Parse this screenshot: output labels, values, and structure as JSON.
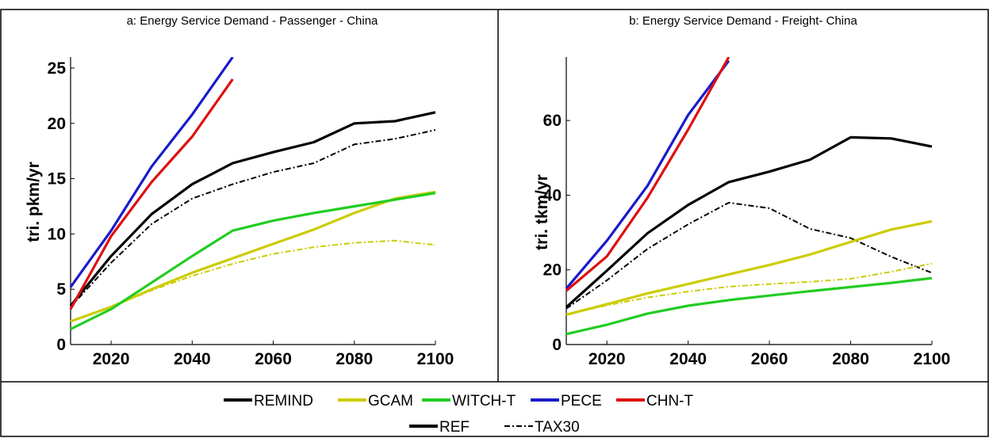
{
  "legend": {
    "models": [
      {
        "name": "REMIND",
        "color": "#000000"
      },
      {
        "name": "GCAM",
        "color": "#cccc00"
      },
      {
        "name": "WITCH-T",
        "color": "#22cc22"
      },
      {
        "name": "PECE",
        "color": "#1a1acc"
      },
      {
        "name": "CHN-T",
        "color": "#dd1111"
      }
    ],
    "scenarios": [
      {
        "name": "REF",
        "style": "solid"
      },
      {
        "name": "TAX30",
        "style": "dashdot"
      }
    ]
  },
  "chart_data": [
    {
      "type": "line",
      "title": "a: Energy Service Demand - Passenger - China",
      "xlabel": "",
      "ylabel": "tri. pkm/yr",
      "xlim": [
        2010,
        2100
      ],
      "ylim": [
        0,
        26
      ],
      "xticks": [
        "2020",
        "2040",
        "2060",
        "2080",
        "2100"
      ],
      "yticks": [
        "0",
        "5",
        "10",
        "15",
        "20",
        "25"
      ],
      "grid": false,
      "series": [
        {
          "name": "REMIND",
          "scenario": "REF",
          "color": "#000000",
          "x": [
            2010,
            2020,
            2030,
            2040,
            2050,
            2060,
            2070,
            2080,
            2090,
            2100
          ],
          "y": [
            3.5,
            8.0,
            11.8,
            14.5,
            16.4,
            17.4,
            18.3,
            20.0,
            20.2,
            21.0
          ]
        },
        {
          "name": "REMIND",
          "scenario": "TAX30",
          "color": "#000000",
          "x": [
            2010,
            2020,
            2030,
            2040,
            2050,
            2060,
            2070,
            2080,
            2090,
            2100
          ],
          "y": [
            3.4,
            7.4,
            10.9,
            13.2,
            14.5,
            15.6,
            16.4,
            18.1,
            18.6,
            19.4
          ]
        },
        {
          "name": "GCAM",
          "scenario": "REF",
          "color": "#cccc00",
          "x": [
            2010,
            2020,
            2030,
            2040,
            2050,
            2060,
            2070,
            2080,
            2090,
            2100
          ],
          "y": [
            2.1,
            3.4,
            5.0,
            6.5,
            7.8,
            9.1,
            10.4,
            11.9,
            13.2,
            13.8
          ]
        },
        {
          "name": "GCAM",
          "scenario": "TAX30",
          "color": "#cccc00",
          "x": [
            2010,
            2020,
            2030,
            2040,
            2050,
            2060,
            2070,
            2080,
            2090,
            2100
          ],
          "y": [
            2.1,
            3.4,
            4.9,
            6.2,
            7.3,
            8.2,
            8.8,
            9.2,
            9.4,
            9.0
          ]
        },
        {
          "name": "WITCH-T",
          "scenario": "REF",
          "color": "#22cc22",
          "x": [
            2010,
            2020,
            2030,
            2040,
            2050,
            2060,
            2070,
            2080,
            2090,
            2100
          ],
          "y": [
            1.4,
            3.2,
            5.6,
            8.0,
            10.3,
            11.2,
            11.9,
            12.5,
            13.1,
            13.7
          ]
        },
        {
          "name": "PECE",
          "scenario": "REF",
          "color": "#1a1acc",
          "x": [
            2010,
            2020,
            2030,
            2040,
            2050
          ],
          "y": [
            5.2,
            10.3,
            16.1,
            20.8,
            26.0
          ]
        },
        {
          "name": "CHN-T",
          "scenario": "REF",
          "color": "#dd1111",
          "x": [
            2010,
            2020,
            2030,
            2040,
            2050
          ],
          "y": [
            3.2,
            9.8,
            14.7,
            18.8,
            24.0
          ]
        }
      ]
    },
    {
      "type": "line",
      "title": "b: Energy Service Demand - Freight- China",
      "xlabel": "",
      "ylabel": "tri. tkm/yr",
      "xlim": [
        2010,
        2100
      ],
      "ylim": [
        0,
        77
      ],
      "xticks": [
        "2020",
        "2040",
        "2060",
        "2080",
        "2100"
      ],
      "yticks": [
        "0",
        "20",
        "40",
        "60"
      ],
      "grid": false,
      "series": [
        {
          "name": "REMIND",
          "scenario": "REF",
          "color": "#000000",
          "x": [
            2010,
            2020,
            2030,
            2040,
            2050,
            2060,
            2070,
            2080,
            2090,
            2100
          ],
          "y": [
            10.0,
            19.8,
            29.8,
            37.4,
            43.5,
            46.3,
            49.5,
            55.5,
            55.2,
            53.0
          ]
        },
        {
          "name": "REMIND",
          "scenario": "TAX30",
          "color": "#000000",
          "x": [
            2010,
            2020,
            2030,
            2040,
            2050,
            2060,
            2070,
            2080,
            2090,
            2100
          ],
          "y": [
            9.6,
            17.2,
            25.6,
            32.2,
            38.0,
            36.5,
            31.0,
            28.5,
            23.5,
            19.2
          ]
        },
        {
          "name": "GCAM",
          "scenario": "REF",
          "color": "#cccc00",
          "x": [
            2010,
            2020,
            2030,
            2040,
            2050,
            2060,
            2070,
            2080,
            2090,
            2100
          ],
          "y": [
            8.0,
            10.8,
            13.7,
            16.2,
            18.8,
            21.3,
            24.1,
            27.5,
            30.8,
            33.0
          ]
        },
        {
          "name": "GCAM",
          "scenario": "TAX30",
          "color": "#cccc00",
          "x": [
            2010,
            2020,
            2030,
            2040,
            2050,
            2060,
            2070,
            2080,
            2090,
            2100
          ],
          "y": [
            8.0,
            10.5,
            12.6,
            14.2,
            15.5,
            16.2,
            16.8,
            17.6,
            19.5,
            21.7
          ]
        },
        {
          "name": "WITCH-T",
          "scenario": "REF",
          "color": "#22cc22",
          "x": [
            2010,
            2020,
            2030,
            2040,
            2050,
            2060,
            2070,
            2080,
            2090,
            2100
          ],
          "y": [
            2.8,
            5.3,
            8.3,
            10.4,
            11.9,
            13.1,
            14.3,
            15.4,
            16.5,
            17.8
          ]
        },
        {
          "name": "PECE",
          "scenario": "REF",
          "color": "#1a1acc",
          "x": [
            2010,
            2020,
            2030,
            2040,
            2050
          ],
          "y": [
            15.0,
            27.8,
            42.5,
            61.5,
            76.0
          ]
        },
        {
          "name": "CHN-T",
          "scenario": "REF",
          "color": "#dd1111",
          "x": [
            2010,
            2020,
            2030,
            2040,
            2050
          ],
          "y": [
            14.4,
            23.6,
            39.3,
            57.6,
            77.0
          ]
        }
      ]
    }
  ]
}
